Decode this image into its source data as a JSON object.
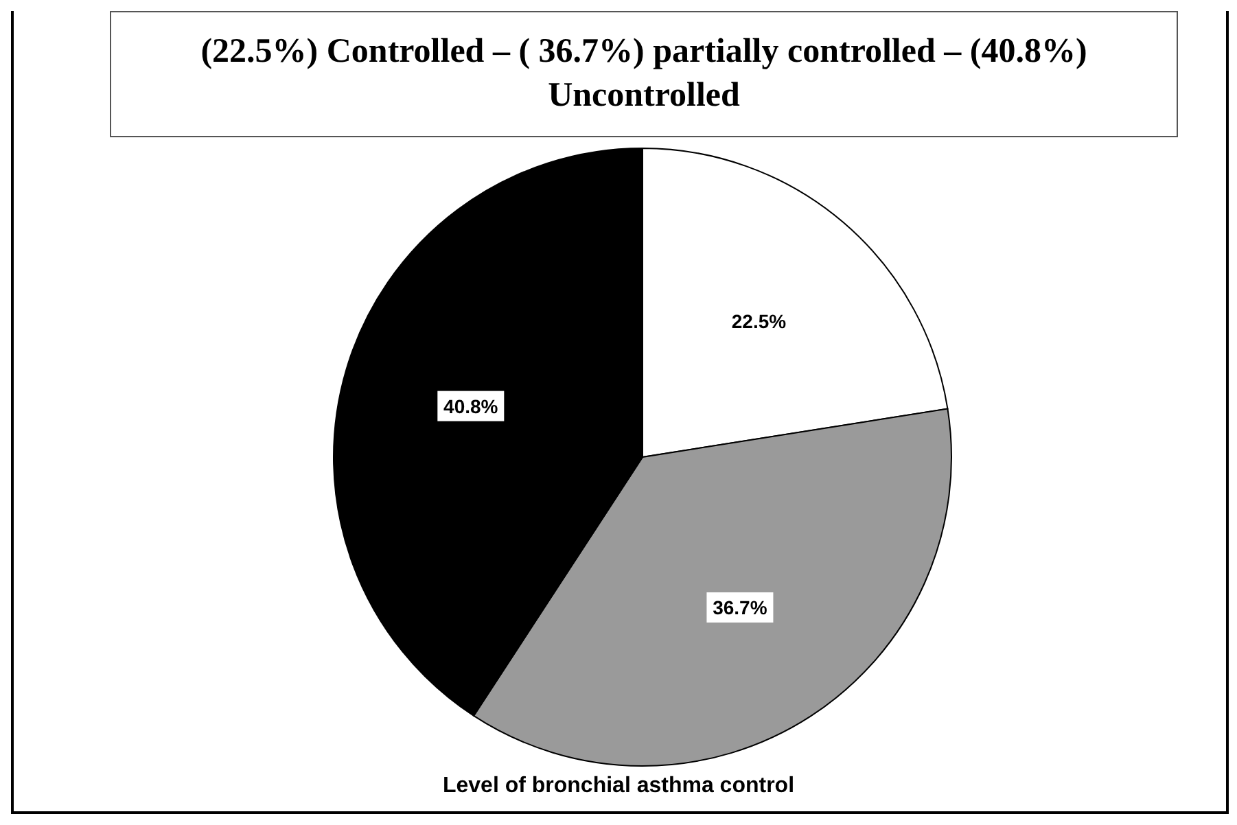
{
  "chart_data": {
    "type": "pie",
    "title": "(22.5%) Controlled – ( 36.7%)  partially controlled – (40.8%) Uncontrolled",
    "categories": [
      null,
      null,
      null
    ],
    "values": [
      22.5,
      36.7,
      40.8
    ],
    "colors": [
      "#ffffff",
      "#9a9a9a",
      "#000000"
    ],
    "value_labels": [
      "22.5%",
      "36.7%",
      "40.8%"
    ],
    "annotations": [
      "Level of bronchial asthma control"
    ],
    "legend": false
  }
}
